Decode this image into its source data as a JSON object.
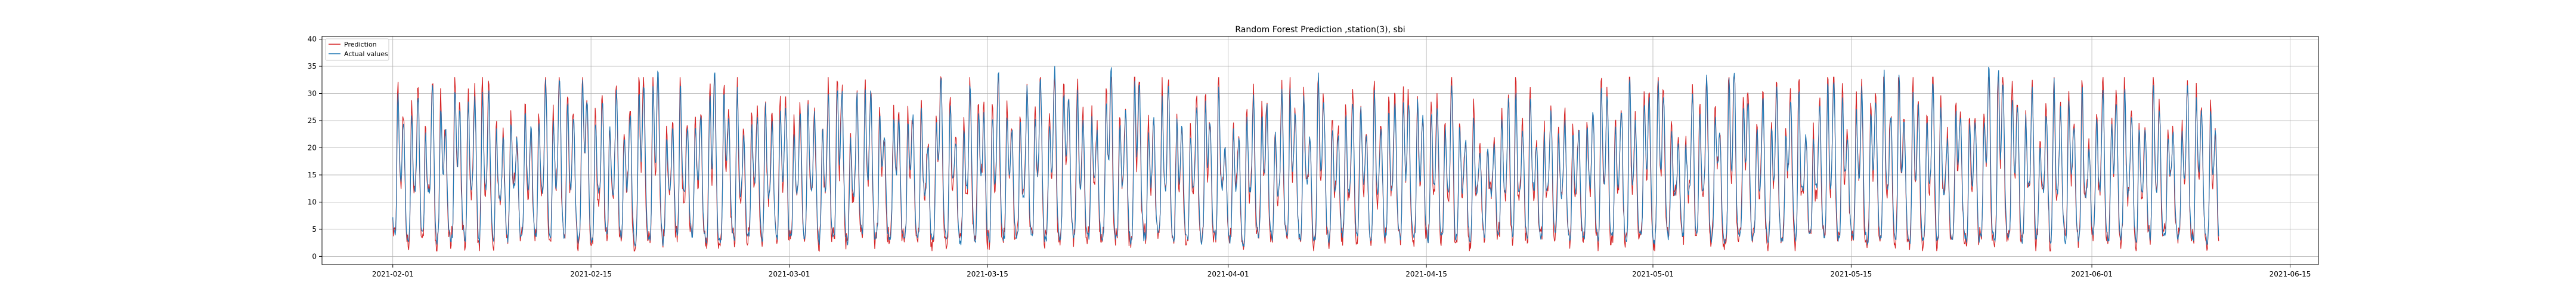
{
  "chart_data": {
    "type": "line",
    "title": "Random Forest Prediction ,station(3), sbi",
    "xlabel": "",
    "ylabel": "",
    "x_start": "2021-02-01",
    "x_end": "2021-06-10",
    "xlim": [
      "2021-01-27",
      "2021-06-17"
    ],
    "ylim": [
      -1.5,
      40.5
    ],
    "y_ticks": [
      0,
      5,
      10,
      15,
      20,
      25,
      30,
      35,
      40
    ],
    "x_ticks": [
      "2021-02-01",
      "2021-02-15",
      "2021-03-01",
      "2021-03-15",
      "2021-04-01",
      "2021-04-15",
      "2021-05-01",
      "2021-05-15",
      "2021-06-01",
      "2021-06-15"
    ],
    "grid": true,
    "legend_position": "upper-left",
    "approximate_daily_pattern": {
      "trough_value": 3,
      "peak_range": [
        22,
        37
      ],
      "peaks_per_day": 2
    },
    "series": [
      {
        "name": "Prediction",
        "color": "#d62728"
      },
      {
        "name": "Actual values",
        "color": "#1f77b4"
      }
    ]
  }
}
